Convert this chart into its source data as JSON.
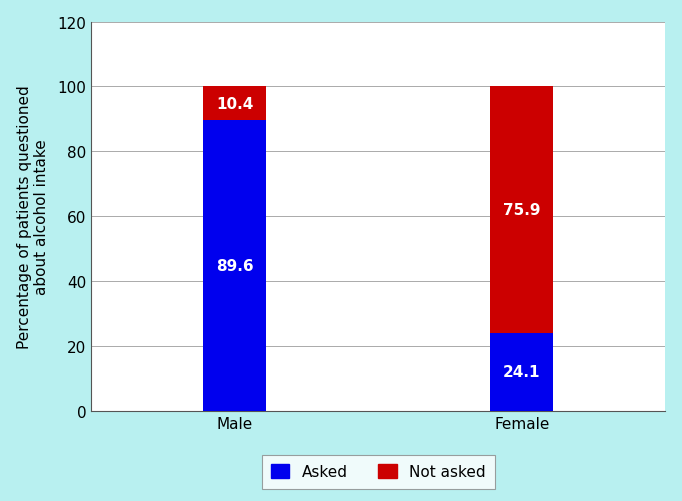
{
  "categories": [
    "Male",
    "Female"
  ],
  "asked_values": [
    89.6,
    24.1
  ],
  "not_asked_values": [
    10.4,
    75.9
  ],
  "bar_color_asked": "#0000ee",
  "bar_color_not_asked": "#cc0000",
  "ylabel": "Percentage of patients questioned\nabout alcohol intake",
  "ylim": [
    0,
    120
  ],
  "yticks": [
    0,
    20,
    40,
    60,
    80,
    100,
    120
  ],
  "legend_labels": [
    "Asked",
    "Not asked"
  ],
  "background_color": "#b8f0f0",
  "plot_background": "#ffffff",
  "bar_width": 0.22,
  "tick_fontsize": 11,
  "ylabel_fontsize": 11,
  "legend_fontsize": 11,
  "value_fontsize": 11,
  "xlim": [
    -0.5,
    1.5
  ]
}
